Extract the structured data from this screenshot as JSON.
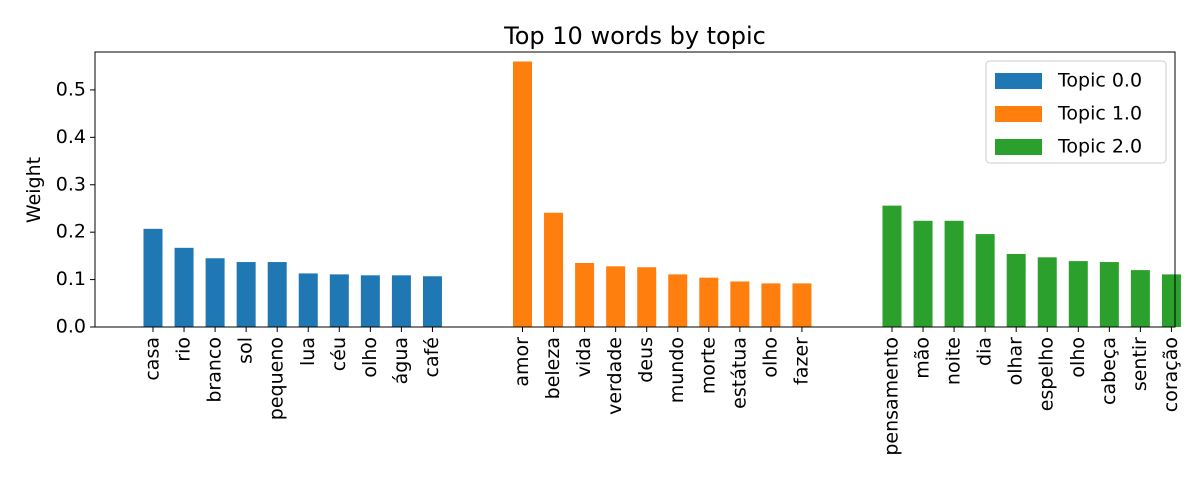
{
  "chart_data": {
    "type": "bar",
    "title": "Top 10 words by topic",
    "xlabel": "",
    "ylabel": "Weight",
    "ylim": [
      0,
      0.58
    ],
    "yticks": [
      "0.0",
      "0.1",
      "0.2",
      "0.3",
      "0.4",
      "0.5"
    ],
    "grid": false,
    "legend_position": "top-right",
    "series": [
      {
        "name": "Topic 0.0",
        "color": "#1f77b4",
        "categories": [
          "casa",
          "rio",
          "branco",
          "sol",
          "pequeno",
          "lua",
          "céu",
          "olho",
          "água",
          "café"
        ],
        "values": [
          0.207,
          0.167,
          0.145,
          0.137,
          0.137,
          0.113,
          0.111,
          0.109,
          0.109,
          0.107
        ]
      },
      {
        "name": "Topic 1.0",
        "color": "#ff7f0e",
        "categories": [
          "amor",
          "beleza",
          "vida",
          "verdade",
          "deus",
          "mundo",
          "morte",
          "estátua",
          "olho",
          "fazer"
        ],
        "values": [
          0.56,
          0.241,
          0.135,
          0.128,
          0.126,
          0.111,
          0.104,
          0.096,
          0.092,
          0.092
        ]
      },
      {
        "name": "Topic 2.0",
        "color": "#2ca02c",
        "categories": [
          "pensamento",
          "mão",
          "noite",
          "dia",
          "olhar",
          "espelho",
          "olho",
          "cabeça",
          "sentir",
          "coração"
        ],
        "values": [
          0.256,
          0.224,
          0.224,
          0.196,
          0.154,
          0.147,
          0.139,
          0.137,
          0.12,
          0.111
        ]
      }
    ]
  }
}
